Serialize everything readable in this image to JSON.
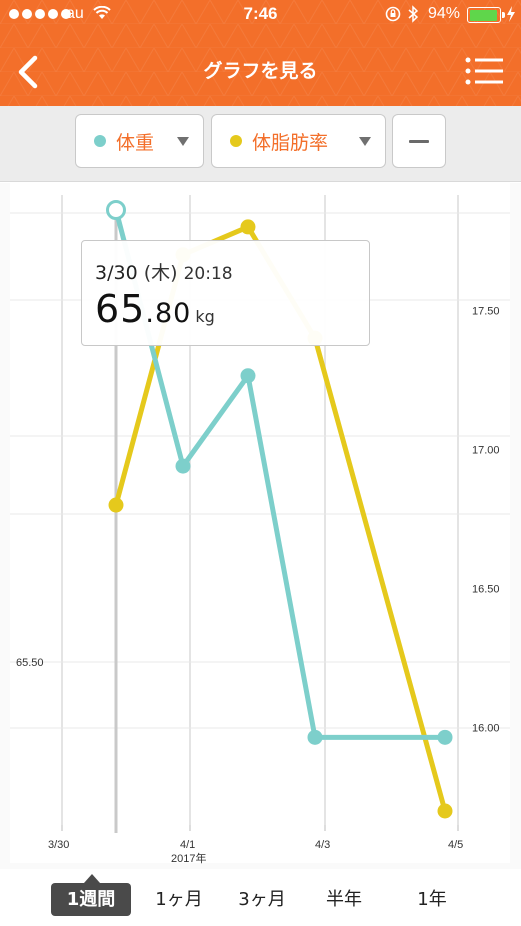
{
  "status": {
    "carrier": "au",
    "time": "7:46",
    "battery_percent": "94%",
    "battery_level": 0.94
  },
  "nav": {
    "title": "グラフを見る"
  },
  "selector": {
    "series1": {
      "label": "体重",
      "color": "#7dcfcb"
    },
    "series2": {
      "label": "体脂肪率",
      "color": "#e5c91c"
    }
  },
  "tooltip": {
    "date": "3/30",
    "weekday": "(木)",
    "time": "20:18",
    "value_int": "65",
    "value_dec": ".80",
    "unit": "kg"
  },
  "chart_data": {
    "type": "line",
    "x": [
      "3/30 20:18",
      "4/1 00:00",
      "4/2 00:00",
      "4/3 00:00",
      "4/5 00:00"
    ],
    "x_ticks": [
      {
        "label": "3/30",
        "sub": ""
      },
      {
        "label": "4/1",
        "sub": "2017年"
      },
      {
        "label": "4/3",
        "sub": ""
      },
      {
        "label": "4/5",
        "sub": ""
      }
    ],
    "left_axis": {
      "ticks": [
        "65.50"
      ]
    },
    "right_axis": {
      "ticks": [
        "17.50",
        "17.00",
        "16.50",
        "16.00"
      ],
      "ylim": [
        15.7,
        17.85
      ]
    },
    "series": [
      {
        "name": "体重",
        "color": "#7dcfcb",
        "axis": "left",
        "points": [
          {
            "x": "3/30 20:18",
            "y": 65.8
          },
          {
            "x": "3/31",
            "y": 65.63
          },
          {
            "x": "4/1 12:00",
            "y": 65.69
          },
          {
            "x": "4/2",
            "y": 65.45
          },
          {
            "x": "4/3",
            "y": 65.45
          }
        ]
      },
      {
        "name": "体脂肪率",
        "color": "#e5c91c",
        "axis": "right",
        "points": [
          {
            "x": "3/30 20:18",
            "y": 16.8
          },
          {
            "x": "3/31",
            "y": 17.7
          },
          {
            "x": "4/1 12:00",
            "y": 17.8
          },
          {
            "x": "4/2",
            "y": 17.4
          },
          {
            "x": "4/3",
            "y": 15.7
          }
        ]
      }
    ]
  },
  "periods": {
    "items": [
      "1週間",
      "1ヶ月",
      "3ヶ月",
      "半年",
      "1年"
    ],
    "active": "1週間"
  }
}
